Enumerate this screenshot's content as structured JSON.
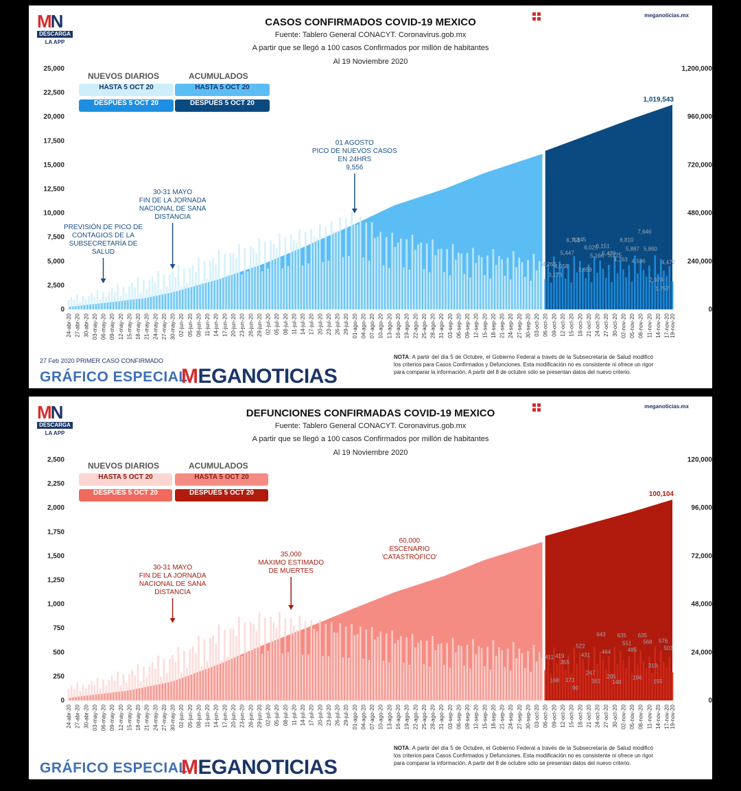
{
  "site": "meganoticias.mx",
  "logo": {
    "mn": "MN",
    "descarga": "DESCARGA",
    "app": "LA APP"
  },
  "brand": {
    "grafico": "GRÁFICO ESPECIAL",
    "meganoticias": "MEGANOTICIAS"
  },
  "nota_label": "NOTA",
  "nota_text": ": A partir del día 5 de Octubre, el Gobierno Federal a través de la Subsecretaría de Salud modificó los criterios para Casos Confirmados y Defunciones. Esta modificación no es consistente ni ofrece un rigor para comparar la información. A partir del 8 de octubre sólo se presentan datos del nuevo criterio.",
  "date_labels": [
    "24-abr-20",
    "27-abr-20",
    "30-abr-20",
    "03-may-20",
    "06-may-20",
    "09-may-20",
    "12-may-20",
    "15-may-20",
    "18-may-20",
    "21-may-20",
    "24-may-20",
    "27-may-20",
    "30-may-20",
    "02-jun-20",
    "05-jun-20",
    "08-jun-20",
    "11-jun-20",
    "14-jun-20",
    "17-jun-20",
    "20-jun-20",
    "23-jun-20",
    "26-jun-20",
    "29-jun-20",
    "02-jul-20",
    "05-jul-20",
    "08-jul-20",
    "11-jul-20",
    "14-jul-20",
    "17-jul-20",
    "20-jul-20",
    "23-jul-20",
    "26-jul-20",
    "29-jul-20",
    "01-ago-20",
    "04-ago-20",
    "07-ago-20",
    "10-ago-20",
    "13-ago-20",
    "16-ago-20",
    "19-ago-20",
    "22-ago-20",
    "25-ago-20",
    "28-ago-20",
    "31-ago-20",
    "03-sep-20",
    "06-sep-20",
    "09-sep-20",
    "12-sep-20",
    "15-sep-20",
    "18-sep-20",
    "21-sep-20",
    "24-sep-20",
    "27-sep-20",
    "30-sep-20",
    "03-oct-20",
    "06-oct-20",
    "09-oct-20",
    "12-oct-20",
    "15-oct-20",
    "18-oct-20",
    "21-oct-20",
    "24-oct-20",
    "27-oct-20",
    "30-oct-20",
    "02-nov-20",
    "05-nov-20",
    "08-nov-20",
    "11-nov-20",
    "14-nov-20",
    "17-nov-20",
    "19-nov-20"
  ],
  "panels": {
    "cases": {
      "title": "CASOS CONFIRMADOS COVID-19 MEXICO",
      "fuente": "Fuente: Tablero General CONACYT. Coronavirus.gob.mx",
      "criterio": "A partir que se llegó a 100 casos Confirmados por millón de habitantes",
      "fecha": "Al 19 Noviembre 2020",
      "legend": {
        "nuevos": "NUEVOS DIARIOS",
        "acumulados": "ACUMULADOS",
        "hasta": "HASTA 5 OCT 20",
        "despues": "DESPUÉS 5 OCT 20"
      },
      "colors": {
        "new_before": "#cfeefb",
        "new_after": "#1e8fe0",
        "cum_before": "#5cbdf5",
        "cum_after": "#0b4a80",
        "legend_new_before_text": "#1b3568"
      },
      "footer_left": "27 Feb 2020 PRIMER CASO CONFIRMADO",
      "annotations": [
        {
          "lines": [
            "PREVISIÓN DE PICO DE",
            "CONTAGIOS DE LA",
            "SUBSECRETARÍA DE",
            "SALUD"
          ]
        },
        {
          "lines": [
            "30-31 MAYO",
            "FIN DE LA JORNADA",
            "NACIONAL DE SANA",
            "DISTANCIA"
          ]
        },
        {
          "lines": [
            "01 AGOSTO",
            "PICO DE NUEVOS CASOS",
            "EN 24HRS",
            "9,556"
          ]
        }
      ],
      "final_label": "1,019,543"
    },
    "deaths": {
      "title": "DEFUNCIONES CONFIRMADAS COVID-19 MEXICO",
      "fuente": "Fuente: Tablero General CONACYT. Coronavirus.gob.mx",
      "criterio": "A partir que se llegó a 100 casos Confirmados por millón de habitantes",
      "fecha": "Al 19 Noviembre 2020",
      "legend": {
        "nuevos": "NUEVOS DIARIOS",
        "acumulados": "ACUMULADOS",
        "hasta": "HASTA 5 OCT 20",
        "despues": "DESPUÉS 5 OCT 20"
      },
      "colors": {
        "new_before": "#fbd6d2",
        "new_after": "#d22a1a",
        "cum_before": "#f58c84",
        "cum_after": "#b01b0d",
        "legend_new_before_text": "#8a1b12"
      },
      "annotations": [
        {
          "lines": [
            "30-31 MAYO",
            "FIN DE LA JORNADA",
            "NACIONAL DE SANA",
            "DISTANCIA"
          ]
        },
        {
          "lines": [
            "35,000",
            "MÁXIMO ESTIMADO",
            "DE MUERTES"
          ]
        },
        {
          "lines": [
            "60,000",
            "ESCENARIO",
            "'CATASTRÓFICO'"
          ]
        }
      ],
      "final_label": "100,104"
    }
  },
  "chart_data": [
    {
      "type": "bar",
      "title": "CASOS CONFIRMADOS COVID-19 MEXICO",
      "xlabel": "",
      "ylabel": "",
      "y2label": "",
      "ylim": [
        0,
        25000
      ],
      "y_ticks": [
        "0",
        "2,500",
        "5,000",
        "7,500",
        "10,000",
        "12,500",
        "15,000",
        "17,500",
        "20,000",
        "22,500",
        "25,000"
      ],
      "y2lim": [
        0,
        1200000
      ],
      "y2_ticks": [
        "0",
        "240,000",
        "480,000",
        "720,000",
        "960,000",
        "1,200,000"
      ],
      "x_start": "24-abr-20",
      "x_end": "19-nov-20",
      "split_date": "06-oct-20",
      "series": [
        {
          "name": "NUEVOS DIARIOS HASTA 5 OCT 20",
          "kind": "daily_bars_before"
        },
        {
          "name": "NUEVOS DIARIOS DESPUÉS 5 OCT 20",
          "kind": "daily_bars_after"
        },
        {
          "name": "ACUMULADOS HASTA 5 OCT 20",
          "kind": "cumulative_area_before",
          "axis": "right",
          "points": [
            [
              "24-abr-20",
              12000
            ],
            [
              "20-may-20",
              55000
            ],
            [
              "30-may-20",
              85000
            ],
            [
              "15-jun-20",
              150000
            ],
            [
              "01-jul-20",
              230000
            ],
            [
              "15-jul-20",
              315000
            ],
            [
              "01-ago-20",
              425000
            ],
            [
              "15-ago-20",
              520000
            ],
            [
              "01-sep-20",
              600000
            ],
            [
              "15-sep-20",
              680000
            ],
            [
              "05-oct-20",
              775000
            ]
          ]
        },
        {
          "name": "ACUMULADOS DESPUÉS 5 OCT 20",
          "kind": "cumulative_area_after",
          "axis": "right",
          "points": [
            [
              "06-oct-20",
              790000
            ],
            [
              "21-oct-20",
              870000
            ],
            [
              "05-nov-20",
              950000
            ],
            [
              "19-nov-20",
              1019543
            ]
          ]
        }
      ],
      "daily_profile": [
        [
          0,
          1000
        ],
        [
          10,
          1500
        ],
        [
          20,
          2200
        ],
        [
          30,
          3000
        ],
        [
          40,
          3700
        ],
        [
          50,
          4700
        ],
        [
          60,
          5500
        ],
        [
          70,
          6200
        ],
        [
          80,
          6800
        ],
        [
          90,
          7500
        ],
        [
          99,
          8500
        ],
        [
          110,
          6500
        ],
        [
          120,
          6200
        ],
        [
          130,
          5500
        ],
        [
          140,
          5000
        ],
        [
          150,
          4800
        ],
        [
          160,
          4500
        ],
        [
          164,
          4200
        ]
      ],
      "labels_after": [
        4263,
        3173,
        4058,
        5447,
        6751,
        6845,
        3699,
        6025,
        5166,
        6151,
        5430,
        5225,
        4763,
        6810,
        5887,
        4596,
        7646,
        5860,
        2674,
        1757,
        4472
      ],
      "ann_dates": [
        "06-may-20",
        "30-may-20",
        "01-ago-20"
      ]
    },
    {
      "type": "bar",
      "title": "DEFUNCIONES CONFIRMADAS COVID-19 MEXICO",
      "xlabel": "",
      "ylabel": "",
      "y2label": "",
      "ylim": [
        0,
        2500
      ],
      "y_ticks": [
        "0",
        "250",
        "500",
        "750",
        "1,000",
        "1,250",
        "1,500",
        "1,750",
        "2,000",
        "2,250",
        "2,500"
      ],
      "y2lim": [
        0,
        120000
      ],
      "y2_ticks": [
        "0",
        "24,000",
        "48,000",
        "72,000",
        "96,000",
        "120,000"
      ],
      "x_start": "24-abr-20",
      "x_end": "19-nov-20",
      "split_date": "06-oct-20",
      "series": [
        {
          "name": "NUEVOS DIARIOS HASTA 5 OCT 20",
          "kind": "daily_bars_before"
        },
        {
          "name": "NUEVOS DIARIOS DESPUÉS 5 OCT 20",
          "kind": "daily_bars_after"
        },
        {
          "name": "ACUMULADOS HASTA 5 OCT 20",
          "kind": "cumulative_area_before",
          "axis": "right",
          "points": [
            [
              "24-abr-20",
              1300
            ],
            [
              "15-may-20",
              5000
            ],
            [
              "30-may-20",
              9500
            ],
            [
              "15-jun-20",
              18000
            ],
            [
              "01-jul-20",
              28000
            ],
            [
              "15-jul-20",
              36000
            ],
            [
              "01-ago-20",
              46000
            ],
            [
              "15-ago-20",
              54000
            ],
            [
              "01-sep-20",
              62000
            ],
            [
              "15-sep-20",
              70000
            ],
            [
              "05-oct-20",
              79000
            ]
          ]
        },
        {
          "name": "ACUMULADOS DESPUÉS 5 OCT 20",
          "kind": "cumulative_area_after",
          "axis": "right",
          "points": [
            [
              "06-oct-20",
              82000
            ],
            [
              "21-oct-20",
              88000
            ],
            [
              "05-nov-20",
              94000
            ],
            [
              "19-nov-20",
              100104
            ]
          ]
        }
      ],
      "daily_profile": [
        [
          0,
          120
        ],
        [
          10,
          180
        ],
        [
          20,
          250
        ],
        [
          30,
          350
        ],
        [
          40,
          450
        ],
        [
          50,
          600
        ],
        [
          60,
          700
        ],
        [
          70,
          750
        ],
        [
          80,
          720
        ],
        [
          90,
          680
        ],
        [
          100,
          650
        ],
        [
          110,
          600
        ],
        [
          120,
          550
        ],
        [
          130,
          520
        ],
        [
          140,
          500
        ],
        [
          150,
          480
        ],
        [
          160,
          450
        ],
        [
          164,
          420
        ]
      ],
      "labels_after": [
        411,
        168,
        419,
        355,
        171,
        90,
        522,
        431,
        247,
        161,
        643,
        464,
        205,
        148,
        635,
        551,
        485,
        196,
        635,
        568,
        319,
        155,
        576,
        503
      ],
      "ann_dates": [
        "30-may-20",
        "10-jul-20",
        "20-ago-20"
      ]
    }
  ]
}
